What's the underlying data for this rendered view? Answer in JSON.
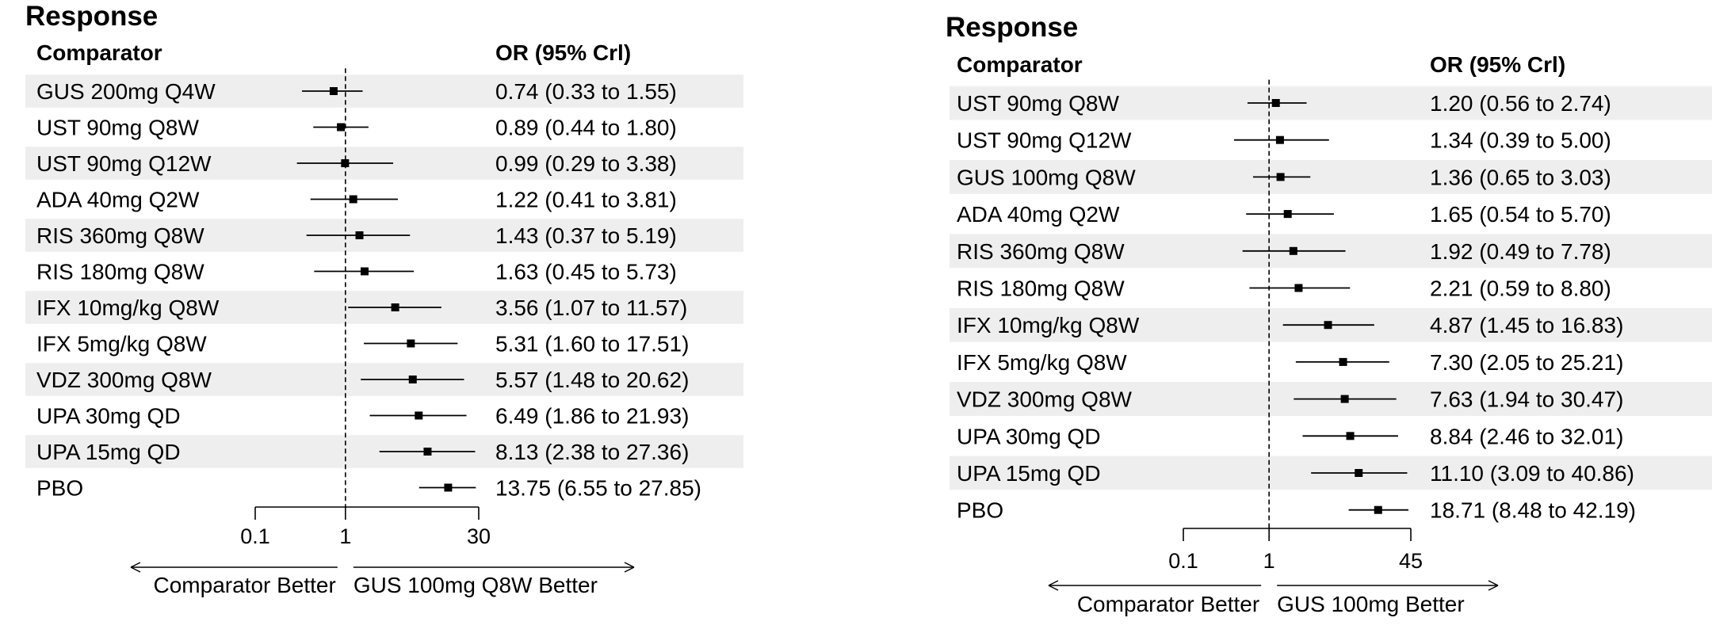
{
  "chart_data": [
    {
      "type": "forest",
      "title": "Response",
      "column_headers": {
        "comparator": "Comparator",
        "estimate": "OR (95% Crl)"
      },
      "x_scale": "log",
      "x_reference": 1,
      "xlim": [
        0.1,
        30
      ],
      "x_ticks": [
        "0.1",
        "1",
        "30"
      ],
      "direction_labels": {
        "left": "Comparator Better",
        "right": "GUS 100mg Q8W Better"
      },
      "rows": [
        {
          "comparator": "GUS 200mg Q4W",
          "or": 0.74,
          "lower": 0.33,
          "upper": 1.55,
          "label": "0.74 (0.33 to 1.55)"
        },
        {
          "comparator": "UST 90mg Q8W",
          "or": 0.89,
          "lower": 0.44,
          "upper": 1.8,
          "label": "0.89 (0.44 to 1.80)"
        },
        {
          "comparator": "UST 90mg Q12W",
          "or": 0.99,
          "lower": 0.29,
          "upper": 3.38,
          "label": "0.99 (0.29 to 3.38)"
        },
        {
          "comparator": "ADA 40mg Q2W",
          "or": 1.22,
          "lower": 0.41,
          "upper": 3.81,
          "label": "1.22 (0.41 to 3.81)"
        },
        {
          "comparator": "RIS 360mg Q8W",
          "or": 1.43,
          "lower": 0.37,
          "upper": 5.19,
          "label": "1.43 (0.37 to 5.19)"
        },
        {
          "comparator": "RIS 180mg Q8W",
          "or": 1.63,
          "lower": 0.45,
          "upper": 5.73,
          "label": "1.63 (0.45 to 5.73)"
        },
        {
          "comparator": "IFX 10mg/kg Q8W",
          "or": 3.56,
          "lower": 1.07,
          "upper": 11.57,
          "label": "3.56 (1.07 to 11.57)"
        },
        {
          "comparator": "IFX 5mg/kg Q8W",
          "or": 5.31,
          "lower": 1.6,
          "upper": 17.51,
          "label": "5.31 (1.60 to 17.51)"
        },
        {
          "comparator": "VDZ 300mg Q8W",
          "or": 5.57,
          "lower": 1.48,
          "upper": 20.62,
          "label": "5.57 (1.48 to 20.62)"
        },
        {
          "comparator": "UPA 30mg QD",
          "or": 6.49,
          "lower": 1.86,
          "upper": 21.93,
          "label": "6.49 (1.86 to 21.93)"
        },
        {
          "comparator": "UPA 15mg QD",
          "or": 8.13,
          "lower": 2.38,
          "upper": 27.36,
          "label": "8.13 (2.38 to 27.36)"
        },
        {
          "comparator": "PBO",
          "or": 13.75,
          "lower": 6.55,
          "upper": 27.85,
          "label": "13.75 (6.55 to 27.85)"
        }
      ]
    },
    {
      "type": "forest",
      "title": "Response",
      "column_headers": {
        "comparator": "Comparator",
        "estimate": "OR (95% Crl)"
      },
      "x_scale": "log",
      "x_reference": 1,
      "xlim": [
        0.1,
        45
      ],
      "x_ticks": [
        "0.1",
        "1",
        "45"
      ],
      "direction_labels": {
        "left": "Comparator Better",
        "right": "GUS 100mg Better"
      },
      "rows": [
        {
          "comparator": "UST 90mg Q8W",
          "or": 1.2,
          "lower": 0.56,
          "upper": 2.74,
          "label": "1.20 (0.56 to 2.74)"
        },
        {
          "comparator": "UST 90mg Q12W",
          "or": 1.34,
          "lower": 0.39,
          "upper": 5.0,
          "label": "1.34 (0.39 to 5.00)"
        },
        {
          "comparator": "GUS 100mg Q8W",
          "or": 1.36,
          "lower": 0.65,
          "upper": 3.03,
          "label": "1.36 (0.65 to 3.03)"
        },
        {
          "comparator": "ADA 40mg Q2W",
          "or": 1.65,
          "lower": 0.54,
          "upper": 5.7,
          "label": "1.65 (0.54 to 5.70)"
        },
        {
          "comparator": "RIS 360mg Q8W",
          "or": 1.92,
          "lower": 0.49,
          "upper": 7.78,
          "label": "1.92 (0.49 to 7.78)"
        },
        {
          "comparator": "RIS 180mg Q8W",
          "or": 2.21,
          "lower": 0.59,
          "upper": 8.8,
          "label": "2.21 (0.59 to 8.80)"
        },
        {
          "comparator": "IFX 10mg/kg Q8W",
          "or": 4.87,
          "lower": 1.45,
          "upper": 16.83,
          "label": "4.87 (1.45 to 16.83)"
        },
        {
          "comparator": "IFX 5mg/kg Q8W",
          "or": 7.3,
          "lower": 2.05,
          "upper": 25.21,
          "label": "7.30 (2.05 to 25.21)"
        },
        {
          "comparator": "VDZ 300mg Q8W",
          "or": 7.63,
          "lower": 1.94,
          "upper": 30.47,
          "label": "7.63 (1.94 to 30.47)"
        },
        {
          "comparator": "UPA 30mg QD",
          "or": 8.84,
          "lower": 2.46,
          "upper": 32.01,
          "label": "8.84 (2.46 to 32.01)"
        },
        {
          "comparator": "UPA 15mg QD",
          "or": 11.1,
          "lower": 3.09,
          "upper": 40.86,
          "label": "11.10 (3.09 to 40.86)"
        },
        {
          "comparator": "PBO",
          "or": 18.71,
          "lower": 8.48,
          "upper": 42.19,
          "label": "18.71 (8.48 to 42.19)"
        }
      ]
    }
  ],
  "colors": {
    "stripe": "#eeeeee",
    "ink": "#000000"
  }
}
